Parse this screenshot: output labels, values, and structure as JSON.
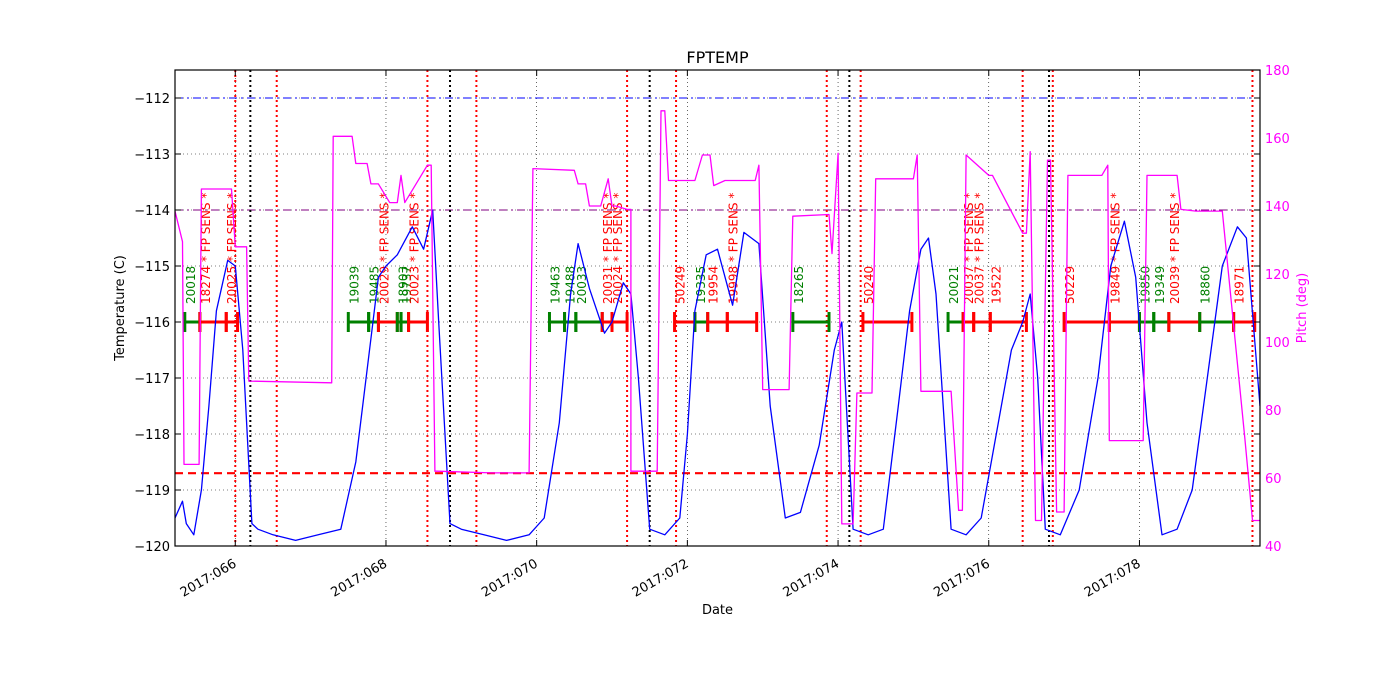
{
  "chart_data": {
    "type": "line",
    "title": "FPTEMP",
    "xlabel": "Date",
    "ylabel": "Temperature (C)",
    "y2label": "Pitch (deg)",
    "xlim": [
      65.2,
      79.6
    ],
    "ylim": [
      -120,
      -111.5
    ],
    "y2lim": [
      40,
      180
    ],
    "x_ticks": [
      {
        "value": 66,
        "label": "2017:066"
      },
      {
        "value": 68,
        "label": "2017:068"
      },
      {
        "value": 70,
        "label": "2017:070"
      },
      {
        "value": 72,
        "label": "2017:072"
      },
      {
        "value": 74,
        "label": "2017:074"
      },
      {
        "value": 76,
        "label": "2017:076"
      },
      {
        "value": 78,
        "label": "2017:078"
      }
    ],
    "y_ticks": [
      {
        "value": -112,
        "label": "−112"
      },
      {
        "value": -113,
        "label": "−113"
      },
      {
        "value": -114,
        "label": "−114"
      },
      {
        "value": -115,
        "label": "−115"
      },
      {
        "value": -116,
        "label": "−116"
      },
      {
        "value": -117,
        "label": "−117"
      },
      {
        "value": -118,
        "label": "−118"
      },
      {
        "value": -119,
        "label": "−119"
      },
      {
        "value": -120,
        "label": "−120"
      }
    ],
    "y2_ticks": [
      {
        "value": 40,
        "label": "40"
      },
      {
        "value": 60,
        "label": "60"
      },
      {
        "value": 80,
        "label": "80"
      },
      {
        "value": 100,
        "label": "100"
      },
      {
        "value": 120,
        "label": "120"
      },
      {
        "value": 140,
        "label": "140"
      },
      {
        "value": 160,
        "label": "160"
      },
      {
        "value": 180,
        "label": "180"
      }
    ],
    "grid": true,
    "colors": {
      "temperature": "#0000ff",
      "pitch": "#ff00ff",
      "limit_high": "#0000ff",
      "limit_planning": "#800080",
      "limit_low": "#ff0000",
      "obs_red": "#ff0000",
      "obs_green": "#008000",
      "comm": "#000000"
    },
    "hlines": [
      {
        "y": -112,
        "color": "#0000ff",
        "style": "dashdot"
      },
      {
        "y": -114,
        "color": "#800080",
        "style": "dashdot"
      },
      {
        "y": -118.7,
        "color": "#ff0000",
        "style": "dashed"
      }
    ],
    "red_vlines": [
      66.0,
      66.55,
      68.55,
      69.2,
      71.2,
      71.85,
      73.85,
      74.3,
      76.45,
      76.85,
      79.5
    ],
    "black_vlines": [
      66.2,
      68.85,
      71.5,
      74.15,
      76.8
    ],
    "obs_segments": [
      {
        "start": 65.33,
        "end": 65.53,
        "color": "#008000",
        "label": "20018"
      },
      {
        "start": 65.53,
        "end": 65.88,
        "color": "#ff0000",
        "label": "18274 * FP SENS *"
      },
      {
        "start": 65.88,
        "end": 66.03,
        "color": "#ff0000",
        "label": "20025 * FP SENS *"
      },
      {
        "start": 67.5,
        "end": 67.77,
        "color": "#008000",
        "label": "19039"
      },
      {
        "start": 67.77,
        "end": 67.9,
        "color": "#008000",
        "label": "19485"
      },
      {
        "start": 67.9,
        "end": 68.15,
        "color": "#ff0000",
        "label": "20029 * FP SENS *"
      },
      {
        "start": 68.15,
        "end": 68.2,
        "color": "#008000",
        "label": "18903"
      },
      {
        "start": 68.2,
        "end": 68.3,
        "color": "#008000",
        "label": "19737"
      },
      {
        "start": 68.3,
        "end": 68.55,
        "color": "#ff0000",
        "label": "20023 * FP SENS *"
      },
      {
        "start": 70.17,
        "end": 70.37,
        "color": "#008000",
        "label": "19463"
      },
      {
        "start": 70.37,
        "end": 70.52,
        "color": "#008000",
        "label": "19488"
      },
      {
        "start": 70.52,
        "end": 70.87,
        "color": "#008000",
        "label": "20033"
      },
      {
        "start": 70.87,
        "end": 71.0,
        "color": "#ff0000",
        "label": "20031 * FP SENS *"
      },
      {
        "start": 71.0,
        "end": 71.2,
        "color": "#ff0000",
        "label": "20024 * FP SENS *"
      },
      {
        "start": 71.83,
        "end": 72.1,
        "color": "#ff0000",
        "label": "50249"
      },
      {
        "start": 72.1,
        "end": 72.27,
        "color": "#008000",
        "label": "19335"
      },
      {
        "start": 72.27,
        "end": 72.53,
        "color": "#ff0000",
        "label": "19954"
      },
      {
        "start": 72.53,
        "end": 72.92,
        "color": "#ff0000",
        "label": "19998 * FP SENS *"
      },
      {
        "start": 73.4,
        "end": 73.88,
        "color": "#008000",
        "label": "18265"
      },
      {
        "start": 74.33,
        "end": 74.98,
        "color": "#ff0000",
        "label": "50240"
      },
      {
        "start": 75.46,
        "end": 75.66,
        "color": "#008000",
        "label": "20021"
      },
      {
        "start": 75.66,
        "end": 75.8,
        "color": "#ff0000",
        "label": "20037 * FP SENS *"
      },
      {
        "start": 75.8,
        "end": 76.02,
        "color": "#ff0000",
        "label": "20037 * FP SENS *"
      },
      {
        "start": 76.02,
        "end": 76.5,
        "color": "#ff0000",
        "label": "19522"
      },
      {
        "start": 77.0,
        "end": 77.6,
        "color": "#ff0000",
        "label": "50229"
      },
      {
        "start": 77.6,
        "end": 78.0,
        "color": "#ff0000",
        "label": "19849 * FP SENS *"
      },
      {
        "start": 78.0,
        "end": 78.19,
        "color": "#008000",
        "label": "19850"
      },
      {
        "start": 78.19,
        "end": 78.39,
        "color": "#008000",
        "label": "19349"
      },
      {
        "start": 78.39,
        "end": 78.8,
        "color": "#ff0000",
        "label": "20039 * FP SENS *"
      },
      {
        "start": 78.8,
        "end": 79.25,
        "color": "#008000",
        "label": "18860"
      },
      {
        "start": 79.25,
        "end": 79.53,
        "color": "#ff0000",
        "label": "18971"
      }
    ],
    "series": [
      {
        "color": "#0000ff",
        "axis": "left",
        "x": [
          65.2,
          65.3,
          65.35,
          65.45,
          65.55,
          65.65,
          65.75,
          65.9,
          66.0,
          66.1,
          66.22,
          66.3,
          66.5,
          66.8,
          67.1,
          67.4,
          67.6,
          67.8,
          67.9,
          68.0,
          68.15,
          68.35,
          68.5,
          68.62,
          68.7,
          68.85,
          69.0,
          69.3,
          69.6,
          69.9,
          70.1,
          70.3,
          70.45,
          70.55,
          70.7,
          70.9,
          71.0,
          71.15,
          71.25,
          71.35,
          71.5,
          71.7,
          71.9,
          72.0,
          72.1,
          72.25,
          72.4,
          72.6,
          72.75,
          72.95,
          73.1,
          73.3,
          73.5,
          73.75,
          73.95,
          74.05,
          74.2,
          74.4,
          74.6,
          74.8,
          74.95,
          75.1,
          75.2,
          75.3,
          75.5,
          75.7,
          75.9,
          76.1,
          76.3,
          76.45,
          76.55,
          76.65,
          76.75,
          76.95,
          77.2,
          77.45,
          77.62,
          77.8,
          77.95,
          78.1,
          78.3,
          78.5,
          78.7,
          78.9,
          79.1,
          79.3,
          79.42,
          79.6
        ],
        "y": [
          -119.5,
          -119.2,
          -119.6,
          -119.8,
          -119.0,
          -117.5,
          -115.8,
          -114.9,
          -115.0,
          -116.5,
          -119.6,
          -119.7,
          -119.8,
          -119.9,
          -119.8,
          -119.7,
          -118.5,
          -116.3,
          -115.2,
          -115.0,
          -114.8,
          -114.3,
          -114.7,
          -114.0,
          -116.0,
          -119.6,
          -119.7,
          -119.8,
          -119.9,
          -119.8,
          -119.5,
          -117.8,
          -115.5,
          -114.6,
          -115.4,
          -116.2,
          -116.0,
          -115.3,
          -115.5,
          -117.0,
          -119.7,
          -119.8,
          -119.5,
          -118.0,
          -115.8,
          -114.8,
          -114.7,
          -115.7,
          -114.4,
          -114.6,
          -117.5,
          -119.5,
          -119.4,
          -118.2,
          -116.5,
          -116.0,
          -119.7,
          -119.8,
          -119.7,
          -117.5,
          -115.8,
          -114.7,
          -114.5,
          -115.5,
          -119.7,
          -119.8,
          -119.5,
          -118.0,
          -116.5,
          -116.0,
          -115.5,
          -117.0,
          -119.7,
          -119.8,
          -119.0,
          -117.0,
          -115.0,
          -114.2,
          -115.2,
          -117.8,
          -119.8,
          -119.7,
          -119.0,
          -117.0,
          -115.0,
          -114.3,
          -114.5,
          -117.5
        ]
      },
      {
        "color": "#ff00ff",
        "axis": "right",
        "x": [
          65.2,
          65.3,
          65.32,
          65.52,
          65.55,
          65.95,
          66.0,
          66.05,
          66.15,
          66.18,
          67.28,
          67.3,
          67.55,
          67.6,
          67.75,
          67.8,
          67.9,
          68.05,
          68.15,
          68.2,
          68.25,
          68.55,
          68.6,
          68.65,
          68.68,
          69.4,
          69.9,
          69.95,
          70.5,
          70.55,
          70.65,
          70.7,
          70.85,
          70.95,
          71.0,
          71.05,
          71.2,
          71.25,
          71.25,
          71.4,
          71.6,
          71.65,
          71.7,
          71.75,
          71.8,
          72.1,
          72.2,
          72.3,
          72.35,
          72.5,
          72.9,
          72.95,
          73.0,
          73.35,
          73.4,
          73.88,
          73.92,
          74.0,
          74.05,
          74.2,
          74.25,
          74.45,
          74.5,
          75.0,
          75.05,
          75.1,
          75.5,
          75.6,
          75.65,
          75.7,
          76.0,
          76.05,
          76.45,
          76.5,
          76.55,
          76.62,
          76.7,
          76.78,
          76.82,
          76.9,
          77.0,
          77.05,
          77.5,
          77.58,
          77.6,
          78.05,
          78.1,
          78.5,
          78.55,
          78.75,
          79.1,
          79.4,
          79.5,
          79.6
        ],
        "y": [
          138.5,
          129.5,
          64,
          64,
          145,
          145,
          128,
          128,
          128,
          88.5,
          88,
          160.5,
          160.5,
          152.5,
          152.5,
          146.5,
          146.5,
          141,
          141,
          149,
          141,
          152,
          152,
          62,
          62,
          61.5,
          61.5,
          151,
          150.5,
          146.5,
          146.5,
          140,
          140,
          148,
          140,
          140,
          139,
          139,
          62,
          62,
          62,
          168,
          168,
          147.5,
          147.5,
          147.5,
          155,
          155,
          146,
          147.5,
          147.5,
          152,
          86,
          86,
          137,
          137.5,
          126,
          155.5,
          46.5,
          46.5,
          85,
          85,
          148,
          148,
          155,
          85.5,
          85.5,
          50.5,
          50.5,
          155,
          149,
          149,
          132,
          132,
          156,
          47.5,
          47.5,
          153.5,
          153.5,
          50,
          50,
          149,
          149,
          152,
          71,
          71,
          149,
          149,
          139,
          138.5,
          138.5,
          71.5,
          47.5,
          47.5
        ]
      }
    ]
  }
}
